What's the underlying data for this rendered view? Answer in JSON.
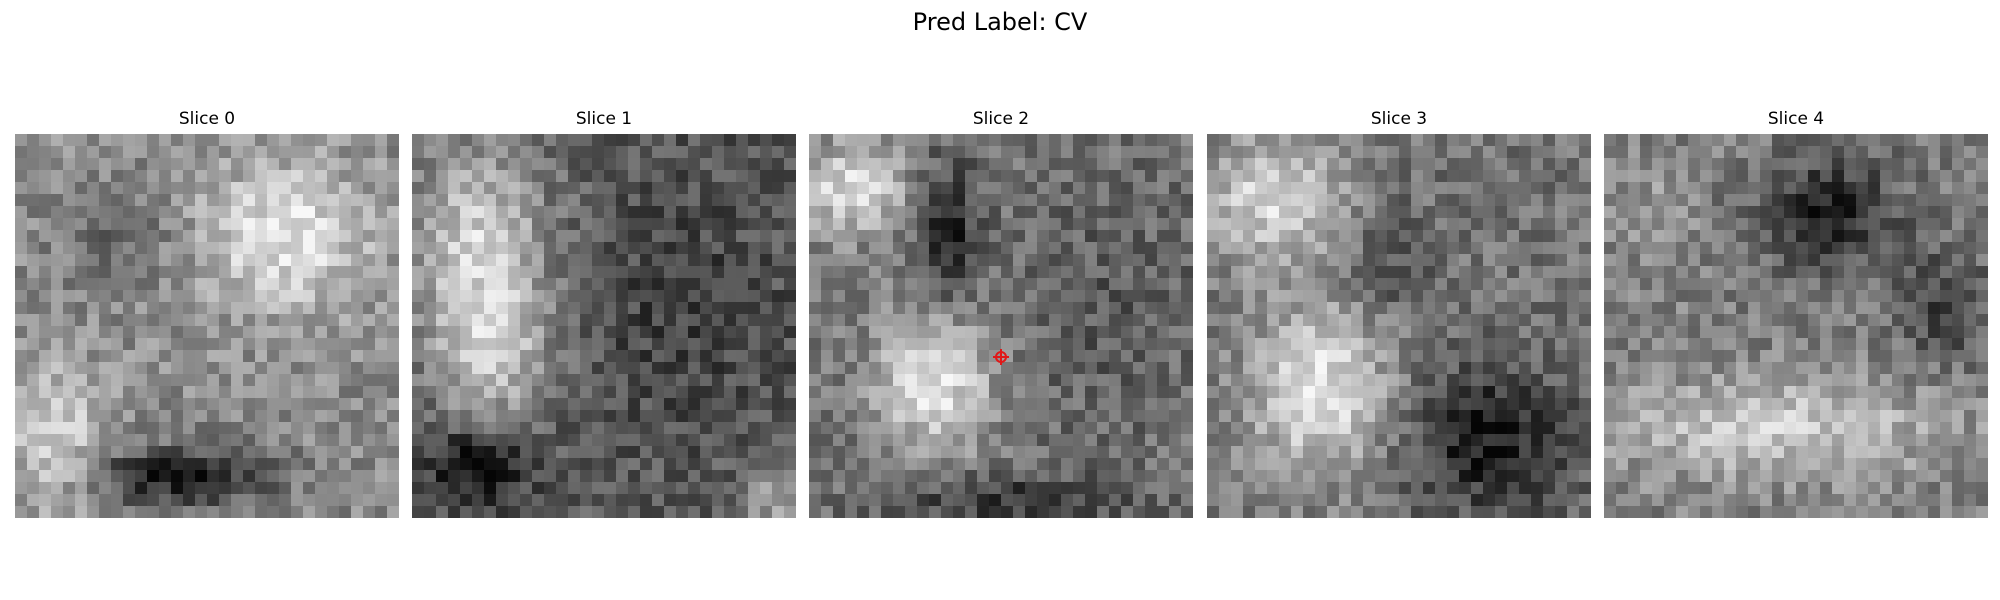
{
  "figure": {
    "title": "Pred Label: CV"
  },
  "slices": [
    {
      "label": "Slice 0"
    },
    {
      "label": "Slice 1"
    },
    {
      "label": "Slice 2"
    },
    {
      "label": "Slice 3"
    },
    {
      "label": "Slice 4"
    }
  ],
  "marker": {
    "color": "#e01818",
    "slice_index": 2,
    "shape": "red-circle-with-cross"
  }
}
